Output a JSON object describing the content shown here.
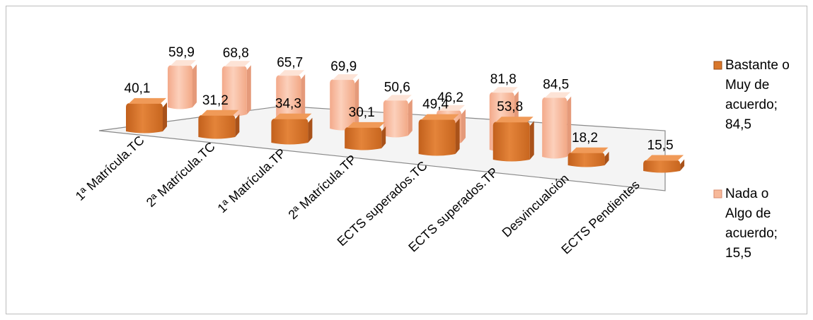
{
  "chart_data": {
    "type": "bar",
    "categories": [
      "1ª Matrícula.TC",
      "2ª Matrícula.TC",
      "1ª Matrícula.TP",
      "2ª Matrícula.TP",
      "ECTS superados.TC",
      "ECTS superados.TP",
      "Desvincualción",
      "ECTS Pendientes"
    ],
    "series": [
      {
        "name": "Bastante o Muy de acuerdo; 84,5",
        "legend_lines": [
          "Bastante o",
          "Muy de",
          "acuerdo;",
          "84,5"
        ],
        "color": "#d9772b",
        "values": [
          40.1,
          31.2,
          34.3,
          30.1,
          49.4,
          53.8,
          18.2,
          15.5
        ],
        "labels": [
          "40,1",
          "31,2",
          "34,3",
          "30,1",
          "49,4",
          "53,8",
          "18,2",
          "15,5"
        ]
      },
      {
        "name": "Nada o Algo de acuerdo; 15,5",
        "legend_lines": [
          "Nada o",
          "Algo de",
          "acuerdo;",
          "15,5"
        ],
        "color": "#f7b99a",
        "values": [
          59.9,
          68.8,
          65.7,
          69.9,
          50.6,
          46.2,
          81.8,
          84.5
        ],
        "labels": [
          "59,9",
          "68,8",
          "65,7",
          "69,9",
          "50,6",
          "46,2",
          "81,8",
          "84,5"
        ]
      }
    ],
    "title": "",
    "xlabel": "",
    "ylabel": "",
    "ylim": [
      0,
      100
    ],
    "grid": false,
    "legend_position": "right"
  }
}
